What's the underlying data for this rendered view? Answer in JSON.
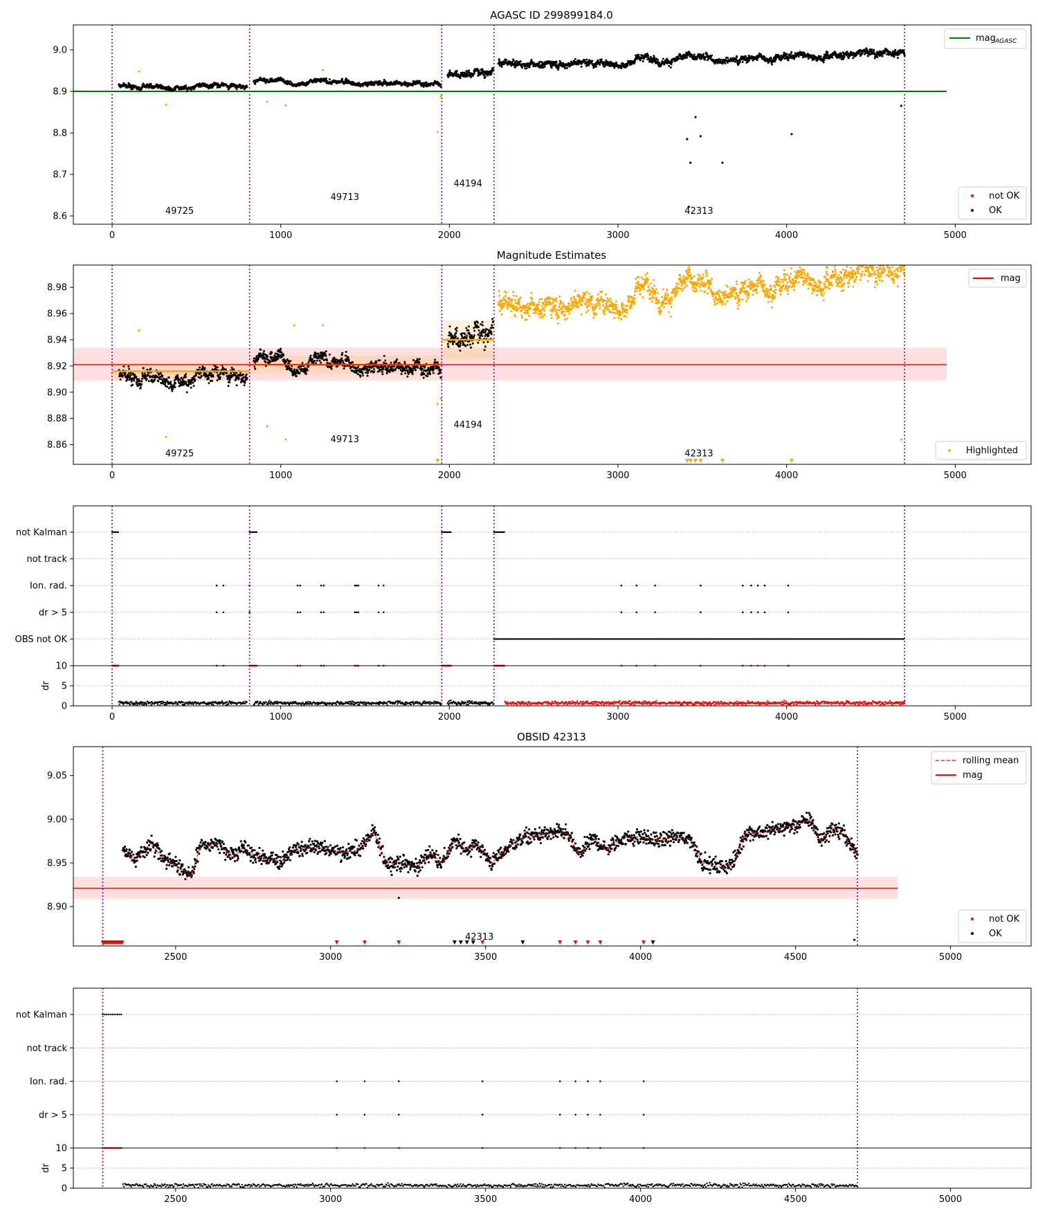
{
  "chart_data": [
    {
      "type": "scatter",
      "title": "AGASC ID 299899184.0",
      "xlim": [
        -230,
        5450
      ],
      "ylim": [
        8.58,
        9.06
      ],
      "xticks": [
        0,
        1000,
        2000,
        3000,
        4000,
        5000
      ],
      "yticks": [
        8.6,
        8.7,
        8.8,
        8.9,
        9.0
      ],
      "ytick_labels": [
        "8.6",
        "8.7",
        "8.8",
        "8.9",
        "9.0"
      ],
      "obs_lines": [
        0,
        815,
        1955,
        2265,
        4700
      ],
      "obs_labels": [
        {
          "text": "49725",
          "x": 400,
          "y": 8.605
        },
        {
          "text": "49713",
          "x": 1380,
          "y": 8.638
        },
        {
          "text": "44194",
          "x": 2110,
          "y": 8.671
        },
        {
          "text": "42313",
          "x": 3480,
          "y": 8.605
        }
      ],
      "reference_line": {
        "value": 8.9,
        "x_range": [
          -230,
          4950
        ],
        "color": "#007700"
      },
      "segments": [
        {
          "x_range": [
            40,
            800
          ],
          "base": 8.915,
          "spread": 0.008,
          "trend": -0.003
        },
        {
          "x_range": [
            840,
            1950
          ],
          "base": 8.925,
          "spread": 0.008,
          "trend": -0.008
        },
        {
          "x_range": [
            1990,
            2260
          ],
          "base": 8.94,
          "spread": 0.012,
          "trend": 0.015
        },
        {
          "x_range": [
            2290,
            4700
          ],
          "base": 8.966,
          "spread": 0.012,
          "trend": 0.028
        }
      ],
      "outliers": [
        {
          "x": 3410,
          "y": 8.785,
          "c": "#000000"
        },
        {
          "x": 3460,
          "y": 8.838,
          "c": "#000000"
        },
        {
          "x": 3490,
          "y": 8.792,
          "c": "#000000"
        },
        {
          "x": 3430,
          "y": 8.728,
          "c": "#000000"
        },
        {
          "x": 3620,
          "y": 8.728,
          "c": "#000000"
        },
        {
          "x": 4030,
          "y": 8.797,
          "c": "#000000"
        },
        {
          "x": 3420,
          "y": 8.622,
          "c": "#000000"
        },
        {
          "x": 4680,
          "y": 8.865,
          "c": "#000000"
        },
        {
          "x": 320,
          "y": 8.868,
          "c": "#ffa500"
        },
        {
          "x": 920,
          "y": 8.875,
          "c": "#ffa500"
        },
        {
          "x": 1030,
          "y": 8.866,
          "c": "#ffa500"
        },
        {
          "x": 1930,
          "y": 8.802,
          "c": "#ffa500"
        },
        {
          "x": 160,
          "y": 8.948,
          "c": "#ffa500"
        },
        {
          "x": 1250,
          "y": 8.951,
          "c": "#ffa500"
        },
        {
          "x": 1950,
          "y": 8.888,
          "c": "#ffa500"
        }
      ],
      "legend_top": [
        {
          "label": "mag",
          "sub": "AGASC",
          "color": "#007700"
        }
      ],
      "legend_bottom": [
        {
          "label": "not OK",
          "color": "#ff0000"
        },
        {
          "label": "OK",
          "color": "#000000"
        }
      ]
    },
    {
      "type": "scatter",
      "title": "Magnitude Estimates",
      "xlim": [
        -230,
        5450
      ],
      "ylim": [
        8.845,
        8.997
      ],
      "xticks": [
        0,
        1000,
        2000,
        3000,
        4000,
        5000
      ],
      "yticks": [
        8.86,
        8.88,
        8.9,
        8.92,
        8.94,
        8.96,
        8.98
      ],
      "ytick_labels": [
        "8.86",
        "8.88",
        "8.90",
        "8.92",
        "8.94",
        "8.96",
        "8.98"
      ],
      "obs_lines": [
        0,
        815,
        1955,
        2265,
        4700
      ],
      "obs_labels": [
        {
          "text": "49725",
          "x": 400,
          "y": 8.851
        },
        {
          "text": "49713",
          "x": 1380,
          "y": 8.862
        },
        {
          "text": "44194",
          "x": 2110,
          "y": 8.873
        },
        {
          "text": "42313",
          "x": 3480,
          "y": 8.851
        }
      ],
      "mean_line": {
        "value": 8.921,
        "band": [
          8.909,
          8.934
        ],
        "x_range": [
          -230,
          4950
        ]
      },
      "segment_means": [
        {
          "x_range": [
            0,
            815
          ],
          "value": 8.916,
          "band": [
            8.909,
            8.923
          ]
        },
        {
          "x_range": [
            815,
            1955
          ],
          "value": 8.921,
          "band": [
            8.914,
            8.928
          ]
        },
        {
          "x_range": [
            1955,
            2265
          ],
          "value": 8.94,
          "band": [
            8.925,
            8.955
          ]
        }
      ],
      "segments": [
        {
          "x_range": [
            40,
            800
          ],
          "base": 8.915,
          "spread": 0.008,
          "trend": -0.003,
          "c": "#000000"
        },
        {
          "x_range": [
            840,
            1950
          ],
          "base": 8.925,
          "spread": 0.008,
          "trend": -0.008,
          "c": "#000000"
        },
        {
          "x_range": [
            1990,
            2260
          ],
          "base": 8.94,
          "spread": 0.012,
          "trend": 0.015,
          "c": "#000000"
        },
        {
          "x_range": [
            2290,
            4700
          ],
          "base": 8.966,
          "spread": 0.012,
          "trend": 0.028,
          "c": "#ffa500"
        }
      ],
      "legend_top": [
        {
          "label": "mag",
          "color": "#ff0000"
        }
      ],
      "legend_bottom": [
        {
          "label": "Highlighted",
          "color": "#ffa500"
        }
      ]
    },
    {
      "type": "scatter",
      "title": "",
      "xlim": [
        -230,
        5450
      ],
      "xticks": [
        0,
        1000,
        2000,
        3000,
        4000,
        5000
      ],
      "flag_labels": [
        "not Kalman",
        "not track",
        "Ion. rad.",
        "dr > 5",
        "OBS not OK"
      ],
      "flags": {
        "not Kalman": [
          [
            0,
            40
          ],
          [
            815,
            860
          ],
          [
            1955,
            2010
          ],
          [
            2265,
            2330
          ]
        ],
        "not track": [],
        "Ion. rad.": [
          620,
          660,
          815,
          1100,
          1115,
          1240,
          1255,
          1440,
          1450,
          1460,
          1580,
          1610,
          3020,
          3110,
          3220,
          3490,
          3740,
          3790,
          3830,
          3870,
          4010
        ],
        "dr > 5": [
          620,
          660,
          815,
          1100,
          1115,
          1240,
          1255,
          1440,
          1450,
          1460,
          1580,
          1610,
          3020,
          3110,
          3220,
          3490,
          3740,
          3790,
          3830,
          3870,
          4010
        ],
        "OBS not OK": [
          [
            2265,
            4700
          ]
        ]
      },
      "dr_ylim": [
        0,
        10
      ],
      "dr_yticks": [
        0,
        5,
        10
      ],
      "dr_ylabel": "dr",
      "obs_lines": [
        0,
        815,
        1955,
        2265,
        4700
      ]
    },
    {
      "type": "line",
      "title": "OBSID 42313",
      "xlim": [
        2170,
        5260
      ],
      "ylim": [
        8.855,
        9.083
      ],
      "xticks": [
        2500,
        3000,
        3500,
        4000,
        4500,
        5000
      ],
      "yticks": [
        8.9,
        8.95,
        9.0,
        9.05
      ],
      "ytick_labels": [
        "8.90",
        "8.95",
        "9.00",
        "9.05"
      ],
      "obs_lines": [
        2265,
        4700
      ],
      "obs_labels": [
        {
          "text": "42313",
          "x": 3480,
          "y": 8.862
        }
      ],
      "mean_line": {
        "value": 8.921,
        "band": [
          8.909,
          8.934
        ],
        "x_range": [
          2170,
          4830
        ]
      },
      "series": [
        {
          "name": "rolling mean",
          "style": "dashed",
          "color": "#ff0000"
        },
        {
          "name": "mag",
          "style": "solid",
          "color": "#ff0000"
        }
      ],
      "rolling_mean": [
        [
          2330,
          8.963
        ],
        [
          2370,
          8.955
        ],
        [
          2420,
          8.972
        ],
        [
          2460,
          8.955
        ],
        [
          2520,
          8.943
        ],
        [
          2550,
          8.935
        ],
        [
          2580,
          8.97
        ],
        [
          2640,
          8.972
        ],
        [
          2680,
          8.958
        ],
        [
          2720,
          8.965
        ],
        [
          2780,
          8.955
        ],
        [
          2840,
          8.952
        ],
        [
          2880,
          8.965
        ],
        [
          2950,
          8.968
        ],
        [
          3000,
          8.965
        ],
        [
          3040,
          8.962
        ],
        [
          3090,
          8.965
        ],
        [
          3140,
          8.985
        ],
        [
          3180,
          8.95
        ],
        [
          3230,
          8.95
        ],
        [
          3280,
          8.945
        ],
        [
          3320,
          8.962
        ],
        [
          3360,
          8.95
        ],
        [
          3400,
          8.975
        ],
        [
          3440,
          8.965
        ],
        [
          3470,
          8.972
        ],
        [
          3520,
          8.95
        ],
        [
          3580,
          8.97
        ],
        [
          3630,
          8.98
        ],
        [
          3700,
          8.983
        ],
        [
          3760,
          8.985
        ],
        [
          3800,
          8.96
        ],
        [
          3850,
          8.978
        ],
        [
          3890,
          8.965
        ],
        [
          3940,
          8.978
        ],
        [
          4000,
          8.98
        ],
        [
          4060,
          8.975
        ],
        [
          4100,
          8.98
        ],
        [
          4160,
          8.978
        ],
        [
          4200,
          8.95
        ],
        [
          4260,
          8.945
        ],
        [
          4300,
          8.95
        ],
        [
          4340,
          8.985
        ],
        [
          4400,
          8.985
        ],
        [
          4450,
          8.99
        ],
        [
          4500,
          8.993
        ],
        [
          4550,
          9.0
        ],
        [
          4580,
          8.975
        ],
        [
          4620,
          8.99
        ],
        [
          4660,
          8.982
        ],
        [
          4700,
          8.958
        ]
      ],
      "low_markers_red": [
        3020,
        3110,
        3220,
        3490,
        3740,
        3790,
        3830,
        3870,
        4010
      ],
      "low_markers_black": [
        3400,
        3420,
        3440,
        3460,
        3620,
        4040
      ],
      "legend_top": [
        {
          "label": "rolling mean",
          "style": "dashed",
          "color": "#ff0000"
        },
        {
          "label": "mag",
          "style": "solid",
          "color": "#ff0000"
        }
      ],
      "legend_bottom": [
        {
          "label": "not OK",
          "color": "#ff0000"
        },
        {
          "label": "OK",
          "color": "#000000"
        }
      ]
    },
    {
      "type": "scatter",
      "title": "",
      "xlim": [
        2170,
        5260
      ],
      "xticks": [
        2500,
        3000,
        3500,
        4000,
        4500,
        5000
      ],
      "flag_labels": [
        "not Kalman",
        "not track",
        "Ion. rad.",
        "dr > 5"
      ],
      "flags": {
        "not Kalman": [
          [
            2265,
            2330
          ]
        ],
        "not track": [],
        "Ion. rad.": [
          3020,
          3110,
          3220,
          3490,
          3740,
          3790,
          3830,
          3870,
          4010
        ],
        "dr > 5": [
          3020,
          3110,
          3220,
          3490,
          3740,
          3790,
          3830,
          3870,
          4010
        ]
      },
      "dr_ylim": [
        0,
        10
      ],
      "dr_yticks": [
        0,
        5,
        10
      ],
      "dr_ylabel": "dr",
      "obs_lines": [
        2265,
        4700
      ]
    }
  ]
}
